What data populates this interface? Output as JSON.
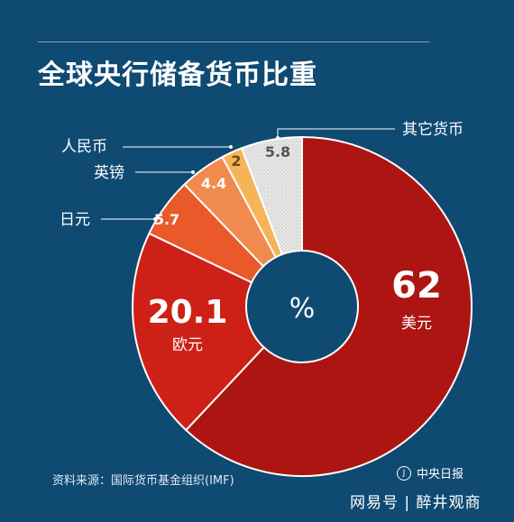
{
  "title": "全球央行储备货币比重",
  "center_label": "%",
  "source": "资料来源：国际货币基金组织(IMF)",
  "publisher": "中央日报",
  "watermark": "网易号 | 醉井观商",
  "colors": {
    "background": "#0f4a73",
    "usd": "#ac1512",
    "eur": "#cd2117",
    "jpy": "#e9592a",
    "gbp": "#f08a4e",
    "cny": "#f5b458",
    "other": "#e6e6e6"
  },
  "chart_data": {
    "type": "pie",
    "donut": true,
    "title": "全球央行储备货币比重",
    "unit": "%",
    "slices": [
      {
        "name": "美元",
        "value": 62,
        "label": "62"
      },
      {
        "name": "欧元",
        "value": 20.1,
        "label": "20.1"
      },
      {
        "name": "日元",
        "value": 5.7,
        "label": "5.7"
      },
      {
        "name": "英镑",
        "value": 4.4,
        "label": "4.4"
      },
      {
        "name": "人民币",
        "value": 2,
        "label": "2"
      },
      {
        "name": "其它货币",
        "value": 5.8,
        "label": "5.8"
      }
    ]
  }
}
